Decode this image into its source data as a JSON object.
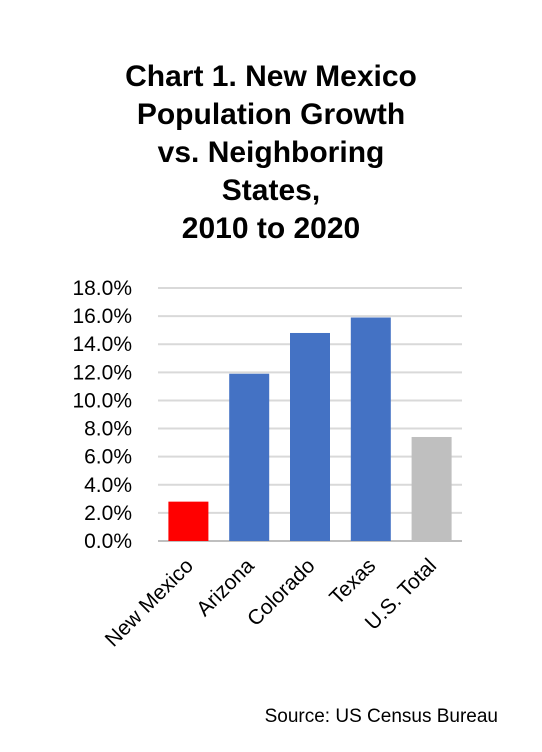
{
  "chart_data": {
    "type": "bar",
    "title_lines": [
      "Chart 1. New Mexico",
      "Population Growth",
      "vs. Neighboring",
      "States,",
      "2010 to 2020"
    ],
    "categories": [
      "New Mexico",
      "Arizona",
      "Colorado",
      "Texas",
      "U.S. Total"
    ],
    "values": [
      2.8,
      11.9,
      14.8,
      15.9,
      7.4
    ],
    "bar_colors": [
      "#ff0000",
      "#4472c4",
      "#4472c4",
      "#4472c4",
      "#bfbfbf"
    ],
    "yticks": [
      "0.0%",
      "2.0%",
      "4.0%",
      "6.0%",
      "8.0%",
      "10.0%",
      "12.0%",
      "14.0%",
      "16.0%",
      "18.0%"
    ],
    "ylim": [
      0,
      18
    ],
    "ytick_step": 2,
    "grid": true,
    "gridline_color": "#d9d9d9"
  },
  "source": "Source: US Census Bureau"
}
